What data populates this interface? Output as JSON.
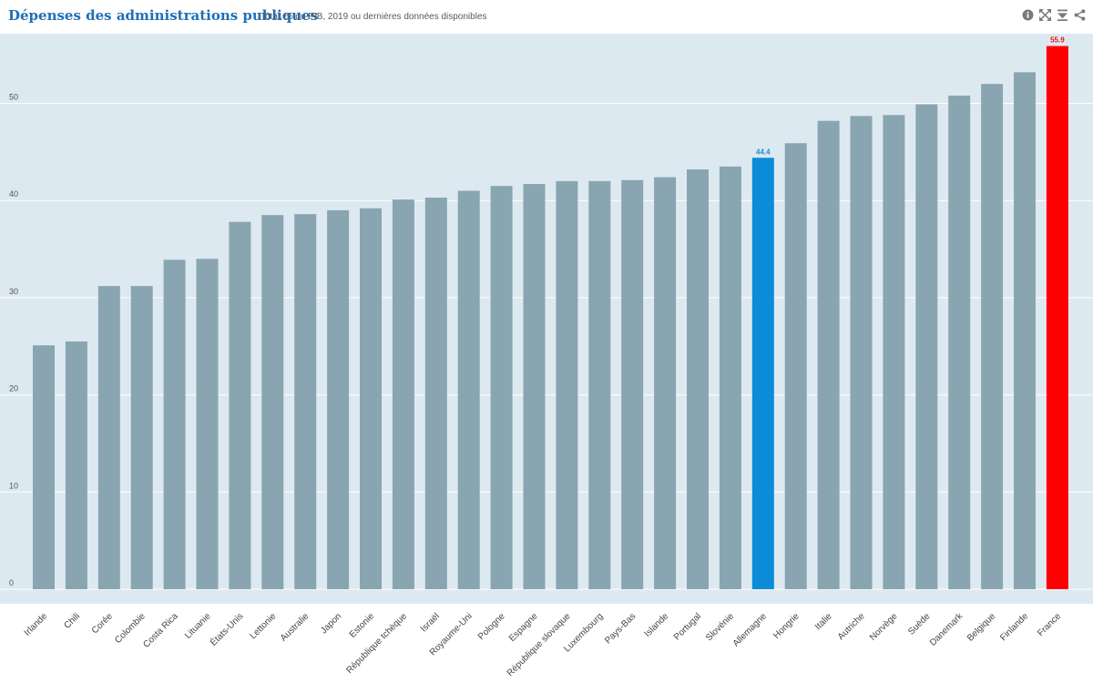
{
  "header": {
    "title": "Dépenses des administrations publiques",
    "subtitle": "Total, % du PIB, 2019 ou dernières données disponibles",
    "tools": [
      {
        "icon": "info-icon"
      },
      {
        "icon": "expand-icon"
      },
      {
        "icon": "download-icon"
      },
      {
        "icon": "share-icon"
      }
    ]
  },
  "colors": {
    "plot_background": "#dde9f0",
    "bar_default": "#89a5b2",
    "bar_highlight_blue": "#0b8bd8",
    "bar_highlight_red": "#ff0000",
    "label_highlight_blue": "#1b90d0",
    "label_highlight_red": "#e8141c"
  },
  "chart_data": {
    "type": "bar",
    "categories": [
      "Irlande",
      "Chili",
      "Corée",
      "Colombie",
      "Costa Rica",
      "Lituanie",
      "États-Unis",
      "Lettonie",
      "Australie",
      "Japon",
      "Estonie",
      "République tchèque",
      "Israël",
      "Royaume-Uni",
      "Pologne",
      "Espagne",
      "République slovaque",
      "Luxembourg",
      "Pays-Bas",
      "Islande",
      "Portugal",
      "Slovénie",
      "Allemagne",
      "Hongrie",
      "Italie",
      "Autriche",
      "Norvège",
      "Suède",
      "Danemark",
      "Belgique",
      "Finlande",
      "France"
    ],
    "values": [
      25.1,
      25.5,
      31.2,
      31.2,
      33.9,
      34.0,
      37.8,
      38.5,
      38.6,
      39.0,
      39.2,
      40.1,
      40.3,
      41.0,
      41.5,
      41.7,
      42.0,
      42.0,
      42.1,
      42.4,
      43.2,
      43.5,
      44.4,
      45.9,
      48.2,
      48.7,
      48.8,
      49.9,
      50.8,
      52.0,
      53.2,
      55.9
    ],
    "highlighted": {
      "Allemagne": "blue",
      "France": "red"
    },
    "data_labels": {
      "Allemagne": "44.4",
      "France": "55.9"
    },
    "yticks": [
      0,
      10,
      20,
      30,
      40,
      50
    ],
    "ylim": [
      0,
      57
    ],
    "grid": true,
    "xlabel": "",
    "ylabel": ""
  }
}
